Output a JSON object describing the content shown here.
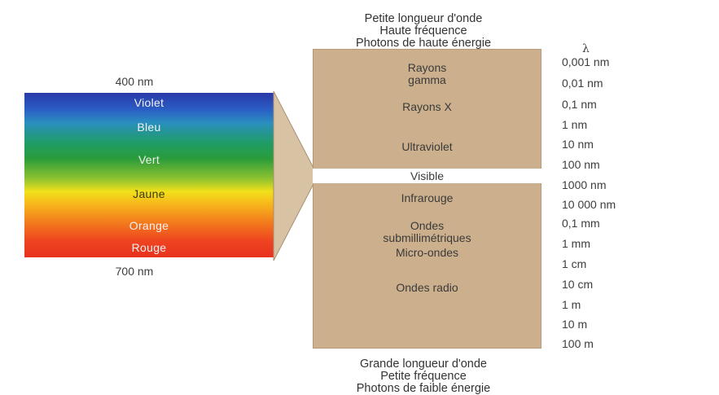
{
  "top_caption": [
    "Petite longueur d'onde",
    "Haute fréquence",
    "Photons de haute énergie"
  ],
  "bottom_caption": [
    "Grande longueur d'onde",
    "Petite fréquence",
    "Photons de faible énergie"
  ],
  "visible_spectrum": {
    "top_label": "400 nm",
    "bottom_label": "700 nm",
    "colors": [
      "Violet",
      "Bleu",
      "Vert",
      "Jaune",
      "Orange",
      "Rouge"
    ]
  },
  "bands": {
    "gamma": [
      "Rayons",
      "gamma"
    ],
    "xray": "Rayons X",
    "uv": "Ultraviolet",
    "visible": "Visible",
    "ir": "Infrarouge",
    "submm": [
      "Ondes",
      "submillimétriques"
    ],
    "micro": "Micro-ondes",
    "radio": "Ondes radio"
  },
  "wavelength_symbol": "λ",
  "wavelengths": [
    "0,001 nm",
    "0,01 nm",
    "0,1 nm",
    "1 nm",
    "10 nm",
    "100 nm",
    "1000 nm",
    "10 000 nm",
    "0,1 mm",
    "1 mm",
    "1 cm",
    "10 cm",
    "1 m",
    "10 m",
    "100 m"
  ],
  "colors": {
    "column": "#ccb08d",
    "visible_band": "#ffffff"
  }
}
